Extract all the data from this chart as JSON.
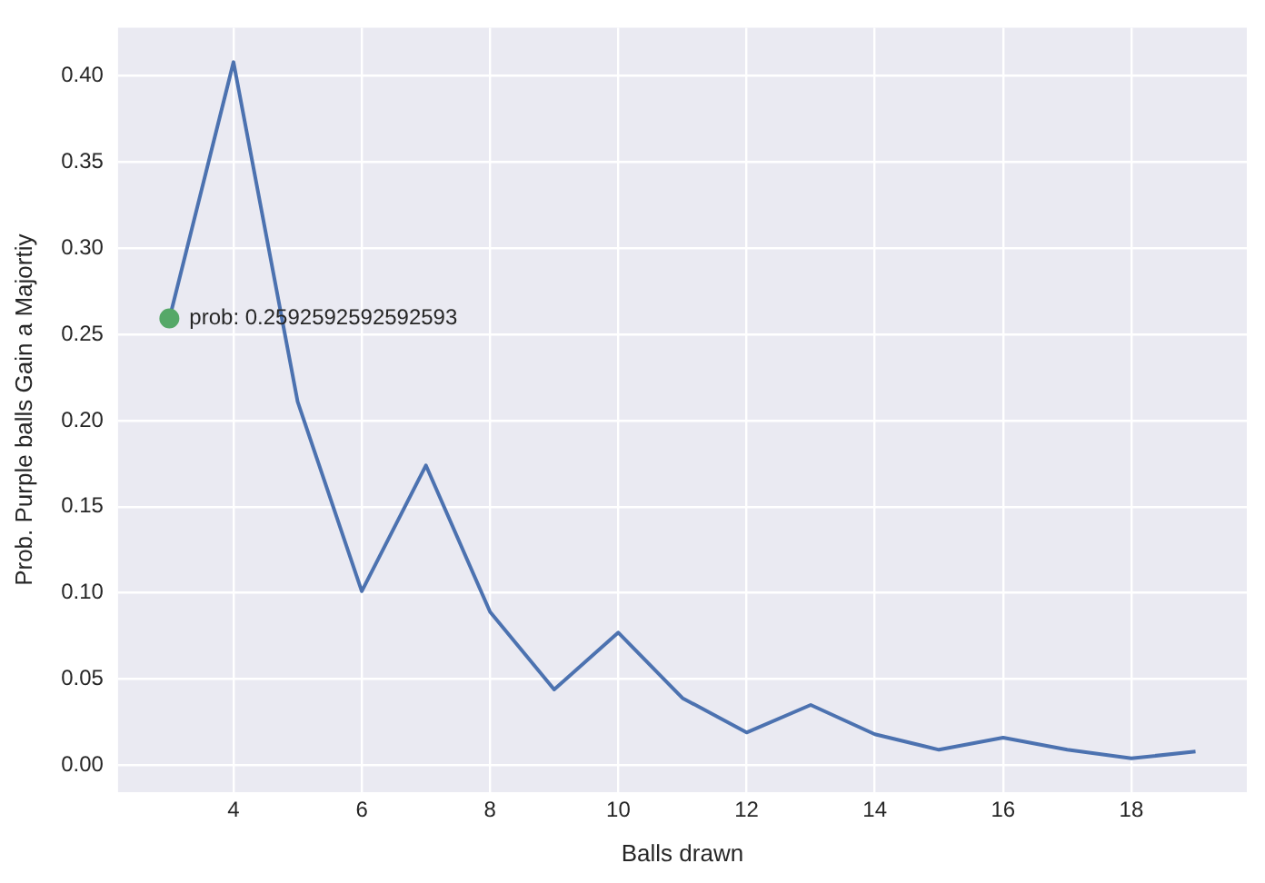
{
  "chart_data": {
    "type": "line",
    "xlabel": "Balls drawn",
    "ylabel": "Prob. Purple balls Gain a Majortiy",
    "xlim": [
      2.2,
      19.8
    ],
    "xticks": [
      4,
      6,
      8,
      10,
      12,
      14,
      16,
      18
    ],
    "ylim": [
      -0.0156,
      0.428
    ],
    "yticks": [
      {
        "value": 0,
        "label": "0.00"
      },
      0.05,
      {
        "value": 0.1,
        "label": "0.10"
      },
      0.15,
      {
        "value": 0.2,
        "label": "0.20"
      },
      0.25,
      {
        "value": 0.3,
        "label": "0.30"
      },
      0.35,
      {
        "value": 0.4,
        "label": "0.40"
      }
    ],
    "grid": true,
    "series": [
      {
        "color": "#4c72b0",
        "x": [
          3,
          4,
          5,
          6,
          7,
          8,
          9,
          10,
          11,
          12,
          13,
          14,
          15,
          16,
          17,
          18,
          19
        ],
        "values": [
          0.259,
          0.408,
          0.211,
          0.101,
          0.174,
          0.089,
          0.044,
          0.077,
          0.039,
          0.019,
          0.035,
          0.018,
          0.009,
          0.016,
          0.009,
          0.004,
          0.008
        ]
      },
      {
        "type": "scatter",
        "color": "#55a868",
        "x": [
          3
        ],
        "values": [
          0.2592592592592593
        ]
      }
    ],
    "annotations": [
      {
        "text": "prob: 0.2592592592592593",
        "x": 3,
        "y": 0.2592592592592593
      }
    ]
  }
}
